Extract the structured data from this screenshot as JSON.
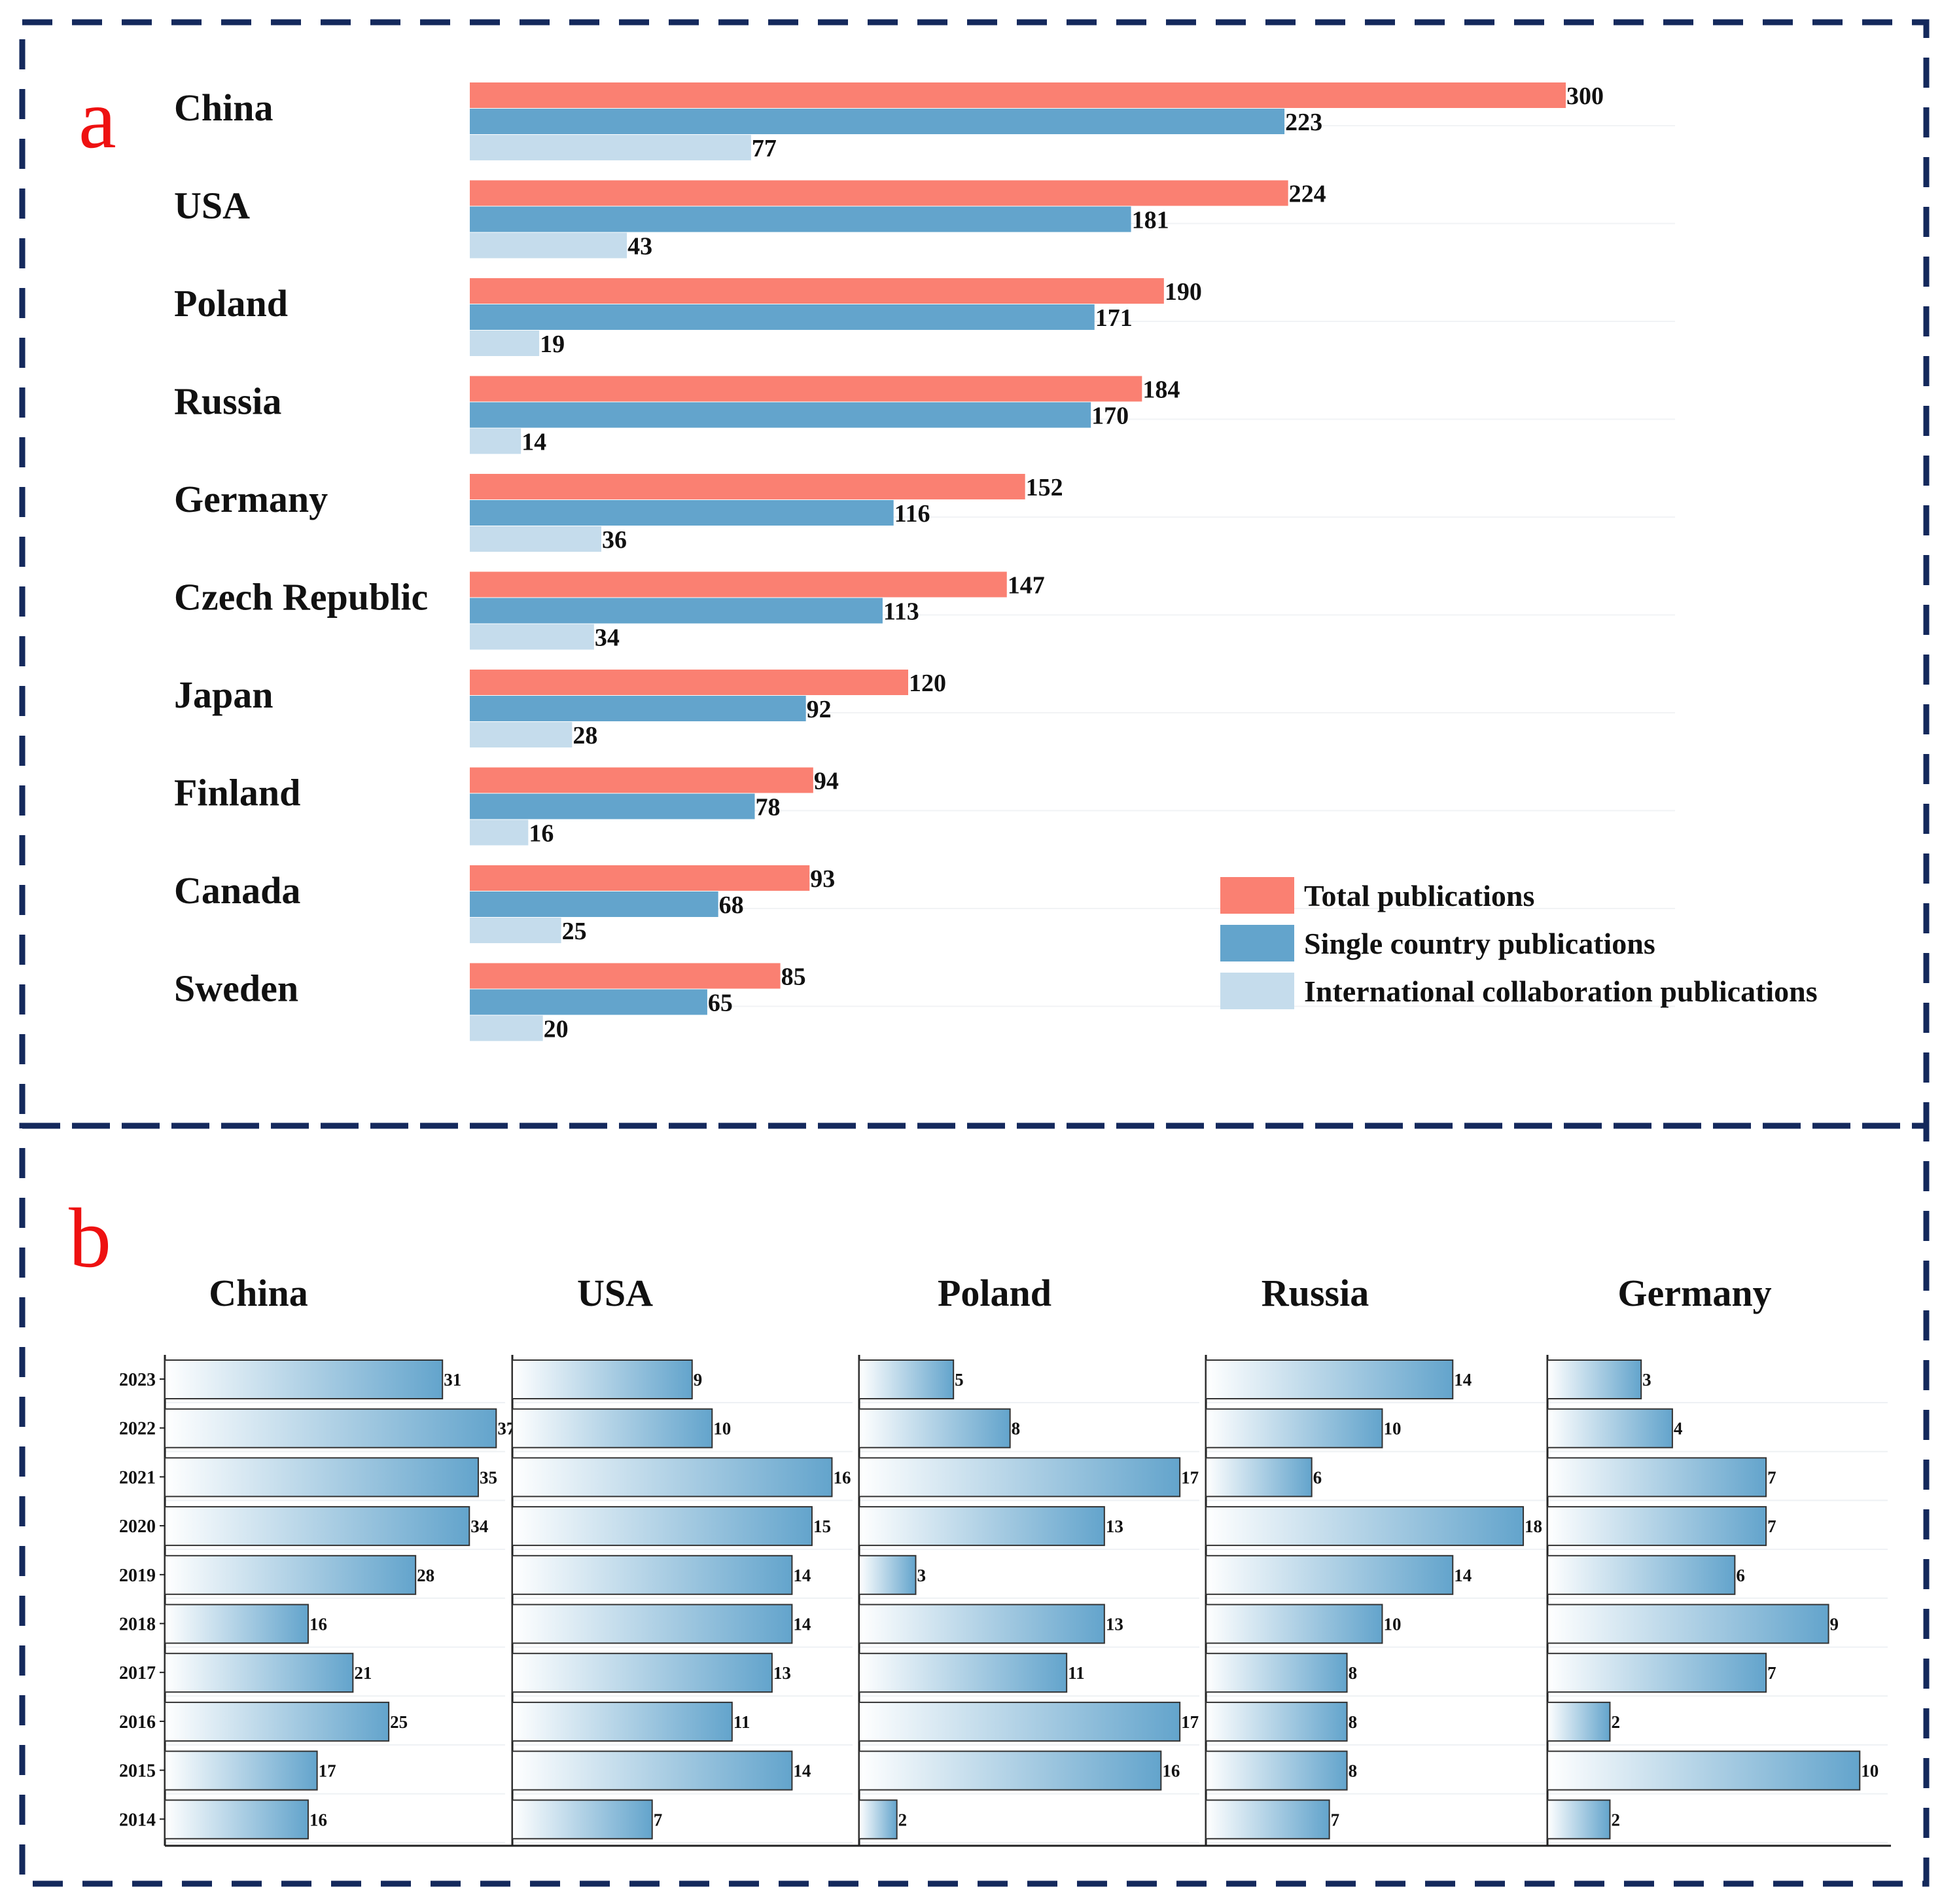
{
  "panel_a": {
    "letter": "a"
  },
  "panel_b": {
    "letter": "b"
  },
  "colors": {
    "total": "#FA8072",
    "single": "#63A4CC",
    "international": "#C5DCEC",
    "frame": "#14295C",
    "panel_letter": "#EE1111",
    "gradient_start": "#FFFFFF",
    "gradient_end": "#63A4CC"
  },
  "chart_data": [
    {
      "type": "bar",
      "orientation": "horizontal",
      "categories": [
        "China",
        "USA",
        "Poland",
        "Russia",
        "Germany",
        "Czech Republic",
        "Japan",
        "Finland",
        "Canada",
        "Sweden"
      ],
      "series": [
        {
          "name": "Total publications",
          "values": [
            300,
            224,
            190,
            184,
            152,
            147,
            120,
            94,
            93,
            85
          ]
        },
        {
          "name": "Single country publications",
          "values": [
            223,
            181,
            171,
            170,
            116,
            113,
            92,
            78,
            68,
            65
          ]
        },
        {
          "name": "International collaboration publications",
          "values": [
            77,
            43,
            19,
            14,
            36,
            34,
            28,
            16,
            25,
            20
          ]
        }
      ],
      "data_labels": true,
      "legend_position": "bottom-right",
      "xlim": [
        0,
        330
      ],
      "grid": false
    },
    {
      "type": "bar",
      "orientation": "horizontal",
      "years": [
        "2023",
        "2022",
        "2021",
        "2020",
        "2019",
        "2018",
        "2017",
        "2016",
        "2015",
        "2014"
      ],
      "panels": [
        {
          "title": "China",
          "values": [
            31,
            37,
            35,
            34,
            28,
            16,
            21,
            25,
            17,
            16
          ]
        },
        {
          "title": "USA",
          "values": [
            9,
            10,
            16,
            15,
            14,
            14,
            13,
            11,
            14,
            7
          ]
        },
        {
          "title": "Poland",
          "values": [
            5,
            8,
            17,
            13,
            3,
            13,
            11,
            17,
            16,
            2
          ]
        },
        {
          "title": "Russia",
          "values": [
            14,
            10,
            6,
            18,
            14,
            10,
            8,
            8,
            8,
            7
          ]
        },
        {
          "title": "Germany",
          "values": [
            3,
            4,
            7,
            7,
            6,
            9,
            7,
            2,
            10,
            2
          ]
        }
      ],
      "data_labels": true,
      "xlim": [
        [
          0,
          38
        ],
        [
          0,
          17
        ],
        [
          0,
          18
        ],
        [
          0,
          19
        ],
        [
          0,
          11
        ]
      ],
      "grid": false
    }
  ]
}
